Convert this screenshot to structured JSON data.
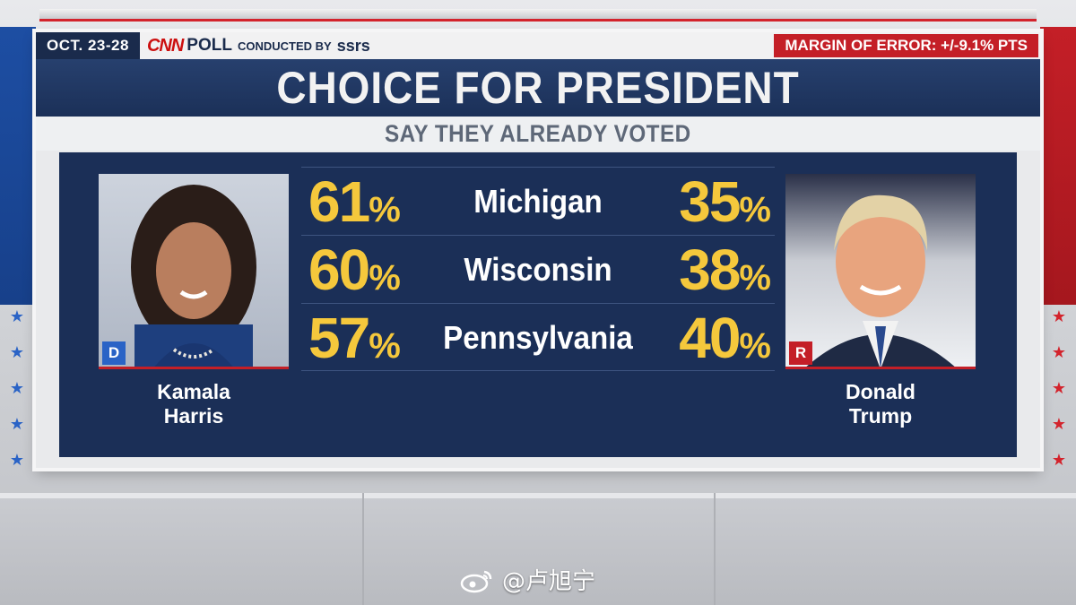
{
  "header": {
    "date": "OCT. 23-28",
    "network": "CNN",
    "poll_word": "POLL",
    "conducted_by": "CONDUCTED BY",
    "pollster": "ssrs",
    "margin_of_error": "MARGIN OF ERROR: +/-9.1% PTS"
  },
  "title": "CHOICE FOR PRESIDENT",
  "subtitle": "SAY THEY ALREADY VOTED",
  "candidates": {
    "left": {
      "first": "Kamala",
      "last": "Harris",
      "party": "D",
      "party_color": "#2a63c6"
    },
    "right": {
      "first": "Donald",
      "last": "Trump",
      "party": "R",
      "party_color": "#c41f27"
    }
  },
  "colors": {
    "accent_yellow": "#f5c83c",
    "panel_navy": "#1b2f57",
    "brand_red": "#c41f27"
  },
  "chart_data": {
    "type": "table",
    "title": "CHOICE FOR PRESIDENT",
    "subtitle": "SAY THEY ALREADY VOTED",
    "categories": [
      "Michigan",
      "Wisconsin",
      "Pennsylvania"
    ],
    "series": [
      {
        "name": "Kamala Harris",
        "values": [
          61,
          60,
          57
        ]
      },
      {
        "name": "Donald Trump",
        "values": [
          35,
          38,
          40
        ]
      }
    ],
    "unit": "%"
  },
  "watermark": "@卢旭宁"
}
